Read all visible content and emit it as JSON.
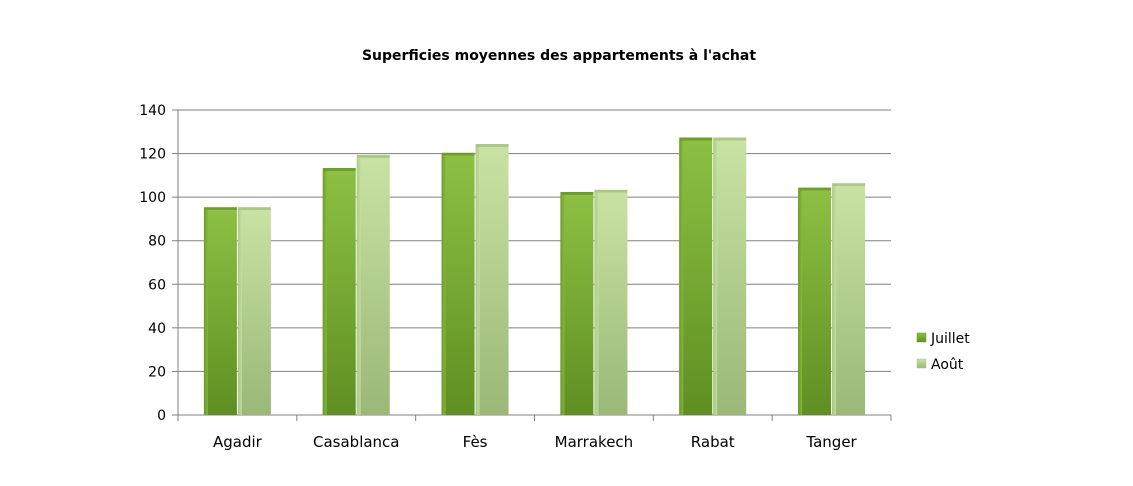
{
  "chart_data": {
    "type": "bar",
    "title": "Superficies moyennes des appartements à l'achat",
    "xlabel": "",
    "ylabel": "",
    "categories": [
      "Agadir",
      "Casablanca",
      "Fès",
      "Marrakech",
      "Rabat",
      "Tanger"
    ],
    "series": [
      {
        "name": "Juillet",
        "values": [
          94,
          112,
          119,
          101,
          126,
          103
        ],
        "color": "#7aad2e"
      },
      {
        "name": "Août",
        "values": [
          94,
          118,
          123,
          102,
          126,
          105
        ],
        "color": "#b7d590"
      }
    ],
    "ylim": [
      0,
      140
    ],
    "yticks": [
      0,
      20,
      40,
      60,
      80,
      100,
      120,
      140
    ],
    "grid": true,
    "legend_position": "right"
  }
}
